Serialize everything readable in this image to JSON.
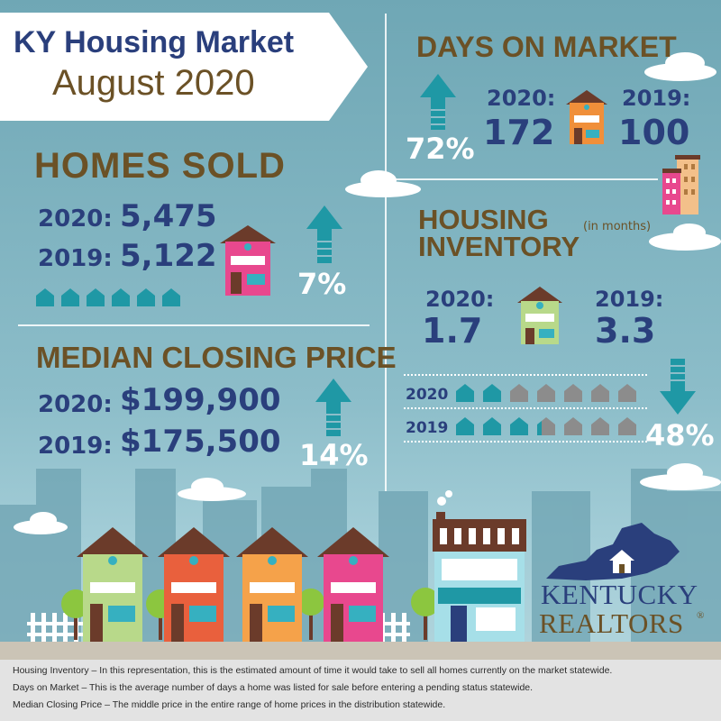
{
  "title": {
    "line1": "KY Housing Market",
    "line2": "August 2020"
  },
  "homes_sold": {
    "heading": "HOMES SOLD",
    "year_2020_label": "2020:",
    "year_2020_value": "5,475",
    "year_2019_label": "2019:",
    "year_2019_value": "5,122",
    "change": "7%",
    "direction": "up"
  },
  "median_price": {
    "heading": "MEDIAN CLOSING PRICE",
    "year_2020_label": "2020:",
    "year_2020_value": "$199,900",
    "year_2019_label": "2019:",
    "year_2019_value": "$175,500",
    "change": "14%",
    "direction": "up"
  },
  "days_on_market": {
    "heading": "DAYS ON MARKET",
    "year_2020_label": "2020:",
    "year_2020_value": "172",
    "year_2019_label": "2019:",
    "year_2019_value": "100",
    "change": "72%",
    "direction": "up"
  },
  "inventory": {
    "heading_line1": "HOUSING",
    "heading_line2": "INVENTORY",
    "units": "(in months)",
    "year_2020_label": "2020:",
    "year_2020_value": "1.7",
    "year_2019_label": "2019:",
    "year_2019_value": "3.3",
    "bar_2020_label": "2020",
    "bar_2019_label": "2019",
    "change": "48%",
    "direction": "down"
  },
  "logo": {
    "line1": "KENTUCKY",
    "line2": "REALTORS",
    "mark": "®"
  },
  "footer": {
    "line1": "Housing Inventory – In this representation, this is the estimated amount of time it would take to sell all homes currently on the market statewide.",
    "line2": "Days on Market – This is the average number of days a home was listed for sale before entering a pending status statewide.",
    "line3": "Median Closing Price – The middle price in the entire range of home prices in the distribution statewide."
  },
  "colors": {
    "navy": "#2a3f7c",
    "brown": "#6b5126",
    "teal": "#1f98a5",
    "sky": "#8cbdc9",
    "gray_house": "#8c8c8c"
  }
}
